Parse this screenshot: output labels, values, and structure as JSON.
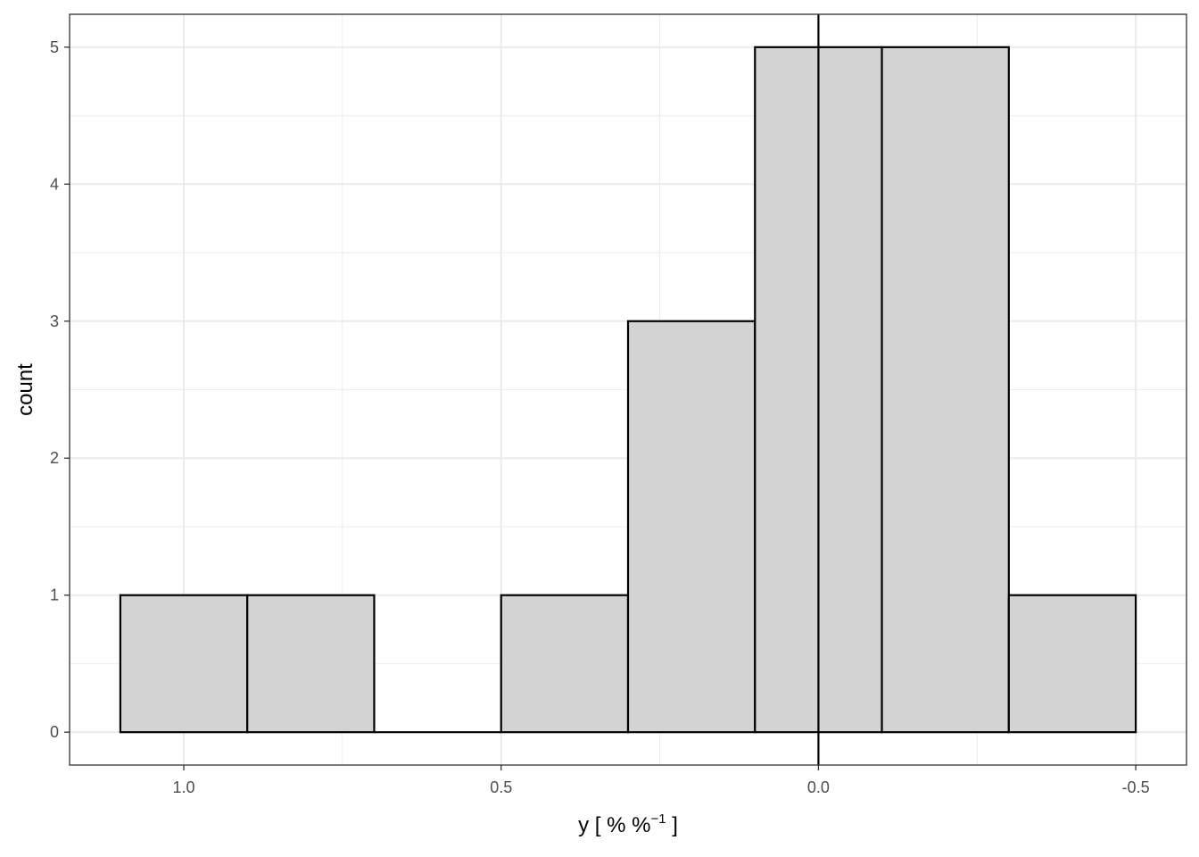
{
  "chart_data": {
    "type": "bar",
    "subtype": "histogram",
    "x_axis_reversed": true,
    "bins": [
      {
        "x_from": 1.1,
        "x_to": 0.9,
        "count": 1
      },
      {
        "x_from": 0.9,
        "x_to": 0.7,
        "count": 1
      },
      {
        "x_from": 0.7,
        "x_to": 0.5,
        "count": 0
      },
      {
        "x_from": 0.5,
        "x_to": 0.3,
        "count": 1
      },
      {
        "x_from": 0.3,
        "x_to": 0.1,
        "count": 3
      },
      {
        "x_from": 0.1,
        "x_to": -0.1,
        "count": 5
      },
      {
        "x_from": -0.1,
        "x_to": -0.3,
        "count": 5
      },
      {
        "x_from": -0.3,
        "x_to": -0.5,
        "count": 1
      }
    ],
    "xlim": [
      1.18,
      -0.58
    ],
    "ylim": [
      -0.24,
      5.24
    ],
    "x_ticks": [
      1.0,
      0.5,
      0.0,
      -0.5
    ],
    "x_tick_labels": [
      "1.0",
      "0.5",
      "0.0",
      "-0.5"
    ],
    "y_ticks": [
      0,
      1,
      2,
      3,
      4,
      5
    ],
    "y_tick_labels": [
      "0",
      "1",
      "2",
      "3",
      "4",
      "5"
    ],
    "reference_line_x": 0,
    "xlabel": "y [ % %",
    "xlabel_superscript": "−1",
    "xlabel_suffix": " ]",
    "ylabel": "count",
    "grid": true,
    "colors": {
      "bar_fill": "#d3d3d3",
      "bar_stroke": "#000000",
      "grid": "#ebebeb",
      "panel_border": "#333333",
      "reference_line": "#000000"
    }
  }
}
